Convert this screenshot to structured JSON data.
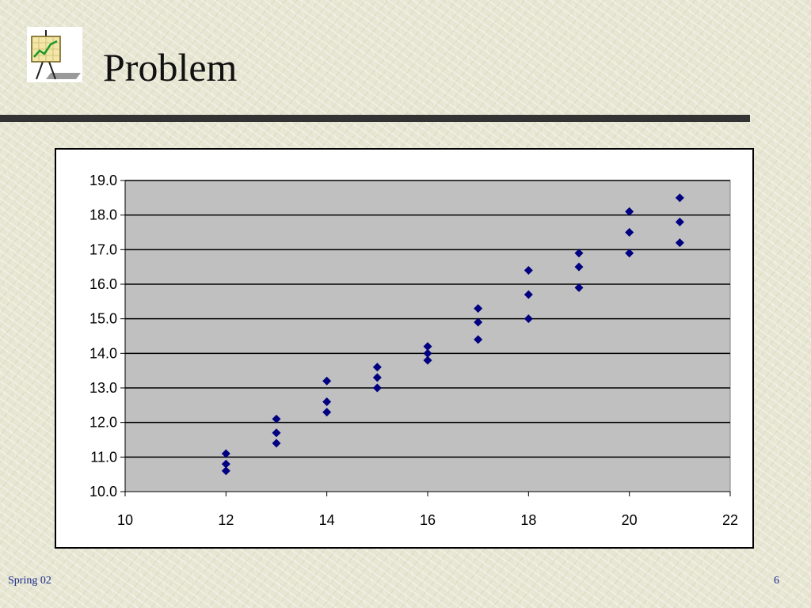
{
  "slide": {
    "title": "Problem",
    "footer_left": "Spring 02",
    "page_number": "6",
    "logo_icon": "easel-chart-icon"
  },
  "colors": {
    "plot_background": "#c0c0c0",
    "marker": "#000080",
    "title_rule": "#333333",
    "footer_text": "#1a2a8c"
  },
  "chart_data": {
    "type": "scatter",
    "marker": "diamond",
    "xlim": [
      10,
      22
    ],
    "ylim": [
      10,
      19
    ],
    "x_ticks": [
      "10",
      "12",
      "14",
      "16",
      "18",
      "20",
      "22"
    ],
    "y_ticks": [
      "10.0",
      "11.0",
      "12.0",
      "13.0",
      "14.0",
      "15.0",
      "16.0",
      "17.0",
      "18.0",
      "19.0"
    ],
    "grid": "horizontal",
    "series": [
      {
        "points": [
          [
            12,
            11.1
          ],
          [
            12,
            10.8
          ],
          [
            12,
            10.6
          ],
          [
            13,
            12.1
          ],
          [
            13,
            11.7
          ],
          [
            13,
            11.4
          ],
          [
            14,
            13.2
          ],
          [
            14,
            12.6
          ],
          [
            14,
            12.3
          ],
          [
            15,
            13.6
          ],
          [
            15,
            13.3
          ],
          [
            15,
            13.0
          ],
          [
            16,
            14.2
          ],
          [
            16,
            14.0
          ],
          [
            16,
            13.8
          ],
          [
            17,
            15.3
          ],
          [
            17,
            14.9
          ],
          [
            17,
            14.4
          ],
          [
            18,
            16.4
          ],
          [
            18,
            15.7
          ],
          [
            18,
            15.0
          ],
          [
            19,
            16.9
          ],
          [
            19,
            16.5
          ],
          [
            19,
            15.9
          ],
          [
            20,
            18.1
          ],
          [
            20,
            17.5
          ],
          [
            20,
            16.9
          ],
          [
            21,
            18.5
          ],
          [
            21,
            17.8
          ],
          [
            21,
            17.2
          ]
        ]
      }
    ]
  }
}
